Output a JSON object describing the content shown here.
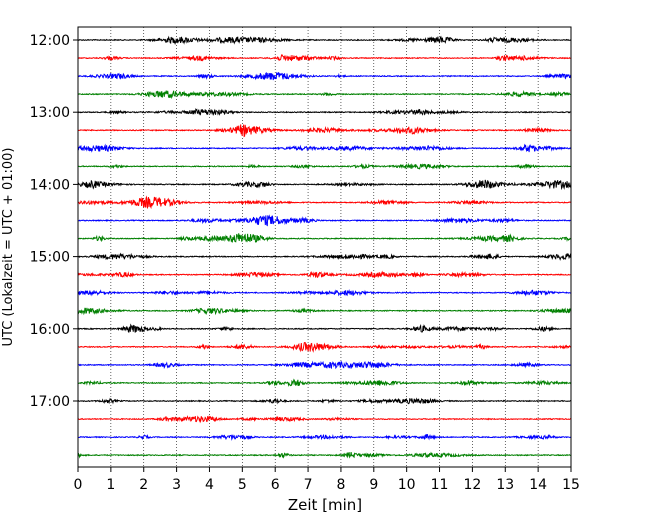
{
  "chart_data": {
    "type": "line",
    "title": "",
    "xlabel": "Zeit  [min]",
    "ylabel": "UTC (Lokalzeit = UTC + 01:00)",
    "xlim": [
      0,
      15
    ],
    "x_ticks": [
      0,
      1,
      2,
      3,
      4,
      5,
      6,
      7,
      8,
      9,
      10,
      11,
      12,
      13,
      14,
      15
    ],
    "y_tick_labels": [
      "12:00",
      "13:00",
      "14:00",
      "15:00",
      "16:00",
      "17:00"
    ],
    "trace_start": "12:00",
    "trace_interval_minutes": 15,
    "trace_count": 24,
    "color_cycle": [
      "#000000",
      "#ff0000",
      "#0000ff",
      "#008000"
    ],
    "grid": "vertical dotted at each minute"
  }
}
